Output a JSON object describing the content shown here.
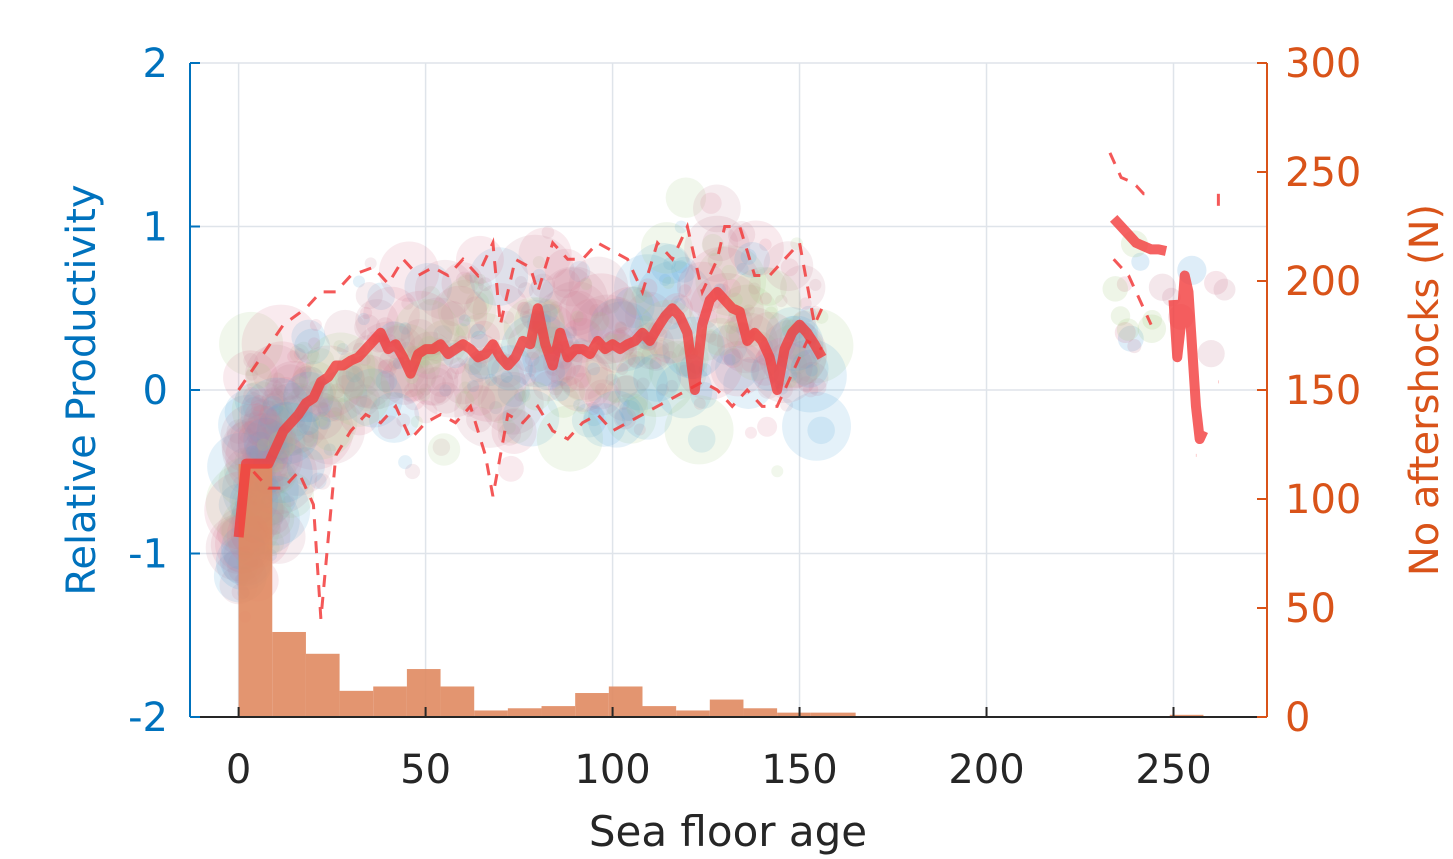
{
  "chart_data": {
    "type": "scatter",
    "xlabel": "Sea floor age",
    "ylabel_left": "Relative Productivity",
    "ylabel_right": "No aftershocks (N)",
    "xlim": [
      -13,
      275
    ],
    "ylim_left": [
      -2,
      2
    ],
    "ylim_right": [
      0,
      300
    ],
    "x_ticks": [
      0,
      50,
      100,
      150,
      200,
      250
    ],
    "y_ticks_left": [
      -2,
      -1,
      0,
      1,
      2
    ],
    "y_ticks_left_labels": [
      "-2",
      "-1",
      "0",
      "1",
      "2"
    ],
    "y_ticks_right": [
      0,
      50,
      100,
      150,
      200,
      250,
      300
    ],
    "grid": true,
    "colors": {
      "left_axis": "#0072bd",
      "right_axis": "#d95319",
      "histogram": "#e08a60",
      "median_line": "#f23b3b",
      "x_axis": "#262626",
      "grid": "#dfe4ea",
      "scatter_palette": [
        "#5aa7da",
        "#d77b95",
        "#a9cf86",
        "#c8869c"
      ]
    },
    "histogram": {
      "axis": "right",
      "bin_width": 9,
      "bins": [
        {
          "x0": 0,
          "x1": 9,
          "count": 116
        },
        {
          "x0": 9,
          "x1": 18,
          "count": 39
        },
        {
          "x0": 18,
          "x1": 27,
          "count": 29
        },
        {
          "x0": 27,
          "x1": 36,
          "count": 12
        },
        {
          "x0": 36,
          "x1": 45,
          "count": 14
        },
        {
          "x0": 45,
          "x1": 54,
          "count": 22
        },
        {
          "x0": 54,
          "x1": 63,
          "count": 14
        },
        {
          "x0": 63,
          "x1": 72,
          "count": 3
        },
        {
          "x0": 72,
          "x1": 81,
          "count": 4
        },
        {
          "x0": 81,
          "x1": 90,
          "count": 5
        },
        {
          "x0": 90,
          "x1": 99,
          "count": 11
        },
        {
          "x0": 99,
          "x1": 108,
          "count": 14
        },
        {
          "x0": 108,
          "x1": 117,
          "count": 5
        },
        {
          "x0": 117,
          "x1": 126,
          "count": 3
        },
        {
          "x0": 126,
          "x1": 135,
          "count": 8
        },
        {
          "x0": 135,
          "x1": 144,
          "count": 4
        },
        {
          "x0": 144,
          "x1": 153,
          "count": 2
        },
        {
          "x0": 153,
          "x1": 165,
          "count": 2
        },
        {
          "x0": 249,
          "x1": 258,
          "count": 1
        }
      ]
    },
    "median_segments": [
      {
        "x": [
          0,
          2,
          4,
          6,
          8,
          10,
          12,
          14,
          16,
          18,
          20,
          22,
          24,
          26,
          28,
          30,
          32,
          34,
          36,
          38,
          40,
          42,
          44,
          46,
          48,
          50,
          52,
          54,
          56,
          58,
          60,
          62,
          64,
          66,
          68,
          70,
          72,
          74,
          76,
          78,
          80,
          82,
          84,
          86,
          88,
          90,
          92,
          94,
          96,
          98,
          100,
          102,
          104,
          106,
          108,
          110,
          112,
          114,
          116,
          118,
          120,
          122,
          124,
          126,
          128,
          130,
          132,
          134,
          136,
          138,
          140,
          142,
          144,
          146,
          148,
          150,
          152,
          154,
          156
        ],
        "y": [
          -0.9,
          -0.45,
          -0.45,
          -0.45,
          -0.45,
          -0.35,
          -0.25,
          -0.2,
          -0.15,
          -0.08,
          -0.05,
          0.05,
          0.08,
          0.15,
          0.15,
          0.18,
          0.2,
          0.25,
          0.3,
          0.35,
          0.25,
          0.28,
          0.2,
          0.1,
          0.22,
          0.25,
          0.25,
          0.28,
          0.22,
          0.25,
          0.28,
          0.25,
          0.2,
          0.22,
          0.28,
          0.2,
          0.15,
          0.2,
          0.3,
          0.28,
          0.5,
          0.28,
          0.15,
          0.35,
          0.2,
          0.25,
          0.25,
          0.22,
          0.3,
          0.25,
          0.28,
          0.25,
          0.28,
          0.3,
          0.35,
          0.3,
          0.38,
          0.45,
          0.5,
          0.45,
          0.35,
          0.0,
          0.4,
          0.55,
          0.6,
          0.55,
          0.5,
          0.48,
          0.3,
          0.35,
          0.3,
          0.2,
          0.0,
          0.25,
          0.35,
          0.4,
          0.35,
          0.28,
          0.2
        ]
      },
      {
        "x": [
          234,
          236,
          238,
          240,
          242,
          244,
          246,
          248
        ],
        "y": [
          1.05,
          1.0,
          0.95,
          0.9,
          0.88,
          0.86,
          0.86,
          0.85
        ]
      },
      {
        "x": [
          250,
          251,
          252,
          253,
          254,
          255,
          256,
          257,
          258
        ],
        "y": [
          0.55,
          0.2,
          0.4,
          0.7,
          0.6,
          0.25,
          -0.1,
          -0.3,
          -0.25
        ]
      }
    ],
    "upper_band_segments": [
      {
        "x": [
          0,
          6,
          12,
          18,
          22,
          26,
          30,
          36,
          40,
          44,
          48,
          52,
          56,
          60,
          64,
          68,
          70,
          74,
          78,
          80,
          84,
          88,
          92,
          96,
          100,
          104,
          108,
          112,
          116,
          120,
          124,
          128,
          130,
          134,
          138,
          142,
          146,
          150,
          154,
          156
        ],
        "y": [
          0.0,
          0.2,
          0.4,
          0.5,
          0.6,
          0.6,
          0.7,
          0.75,
          0.65,
          0.8,
          0.7,
          0.75,
          0.7,
          0.8,
          0.7,
          0.9,
          0.4,
          0.8,
          0.75,
          0.6,
          0.9,
          0.8,
          0.8,
          0.9,
          0.85,
          0.8,
          0.6,
          0.9,
          0.8,
          1.0,
          0.6,
          0.8,
          1.0,
          1.0,
          0.7,
          0.7,
          0.8,
          0.9,
          0.4,
          0.5
        ]
      },
      {
        "x": [
          233,
          236,
          238,
          240,
          242,
          244
        ],
        "y": [
          1.45,
          1.3,
          1.28,
          1.25,
          1.2,
          1.2
        ]
      },
      {
        "x": [
          262,
          262
        ],
        "y": [
          1.2,
          1.1
        ]
      }
    ],
    "lower_band_segments": [
      {
        "x": [
          4,
          8,
          12,
          16,
          20,
          22,
          26,
          30,
          34,
          38,
          42,
          46,
          50,
          54,
          58,
          62,
          66,
          68,
          72,
          76,
          80,
          84,
          88,
          92,
          96,
          100,
          104,
          108,
          112,
          116,
          120,
          124,
          128,
          132,
          136,
          140,
          144,
          148,
          152,
          156
        ],
        "y": [
          -0.5,
          -0.6,
          -0.6,
          -0.5,
          -0.7,
          -1.4,
          -0.4,
          -0.25,
          -0.15,
          -0.2,
          -0.1,
          -0.3,
          -0.2,
          -0.15,
          -0.2,
          -0.1,
          -0.4,
          -0.65,
          -0.15,
          -0.2,
          -0.1,
          -0.25,
          -0.3,
          -0.2,
          -0.15,
          -0.25,
          -0.2,
          -0.15,
          -0.1,
          -0.05,
          0.0,
          0.05,
          0.0,
          -0.1,
          0.0,
          -0.1,
          -0.1,
          0.1,
          0.3,
          0.25
        ]
      },
      {
        "x": [
          234,
          236,
          238,
          240,
          242,
          244
        ],
        "y": [
          0.8,
          0.75,
          0.7,
          0.6,
          0.5,
          0.4
        ]
      },
      {
        "x": [
          256,
          256
        ],
        "y": [
          -0.4,
          -0.4
        ]
      },
      {
        "x": [
          262,
          262
        ],
        "y": [
          0.05,
          0.05
        ]
      }
    ]
  }
}
